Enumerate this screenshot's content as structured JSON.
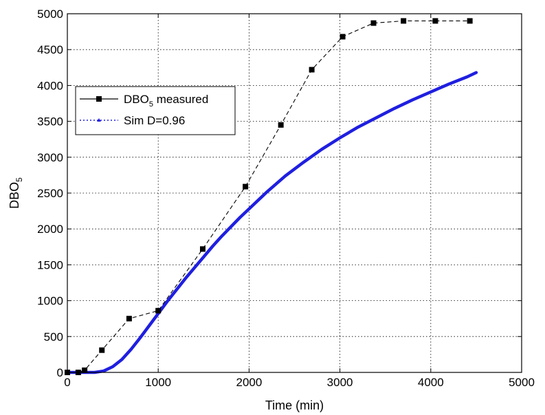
{
  "chart_data": {
    "type": "line",
    "xlabel": "Time (min)",
    "ylabel_main": "DBO",
    "ylabel_sub": "5",
    "xlim": [
      0,
      5000
    ],
    "ylim": [
      0,
      5000
    ],
    "xticks": [
      0,
      1000,
      2000,
      3000,
      4000,
      5000
    ],
    "yticks": [
      0,
      500,
      1000,
      1500,
      2000,
      2500,
      3000,
      3500,
      4000,
      4500,
      5000
    ],
    "grid": true,
    "legend_position": "upper-left",
    "series": [
      {
        "name_main": "DBO",
        "name_sub": "5",
        "name_suffix": " measured",
        "style": "dashed-square-markers",
        "color": "#000000",
        "x": [
          0,
          120,
          190,
          380,
          680,
          1000,
          1490,
          1960,
          2350,
          2690,
          3030,
          3370,
          3700,
          4050,
          4430
        ],
        "y": [
          0,
          0,
          30,
          310,
          750,
          860,
          1720,
          2590,
          3450,
          4220,
          4680,
          4870,
          4900,
          4900,
          4900
        ]
      },
      {
        "name": "Sim D=0.96",
        "style": "solid-thick",
        "color": "#1f1fe0",
        "x": [
          0,
          300,
          400,
          500,
          600,
          700,
          800,
          900,
          1000,
          1100,
          1200,
          1300,
          1400,
          1500,
          1600,
          1700,
          1800,
          1900,
          2000,
          2200,
          2400,
          2600,
          2800,
          3000,
          3200,
          3400,
          3600,
          3800,
          4000,
          4200,
          4400,
          4500
        ],
        "y": [
          0,
          0,
          20,
          80,
          180,
          320,
          480,
          650,
          820,
          990,
          1150,
          1310,
          1460,
          1610,
          1760,
          1900,
          2030,
          2160,
          2280,
          2520,
          2740,
          2930,
          3110,
          3270,
          3420,
          3550,
          3680,
          3800,
          3910,
          4020,
          4120,
          4180
        ]
      }
    ]
  }
}
